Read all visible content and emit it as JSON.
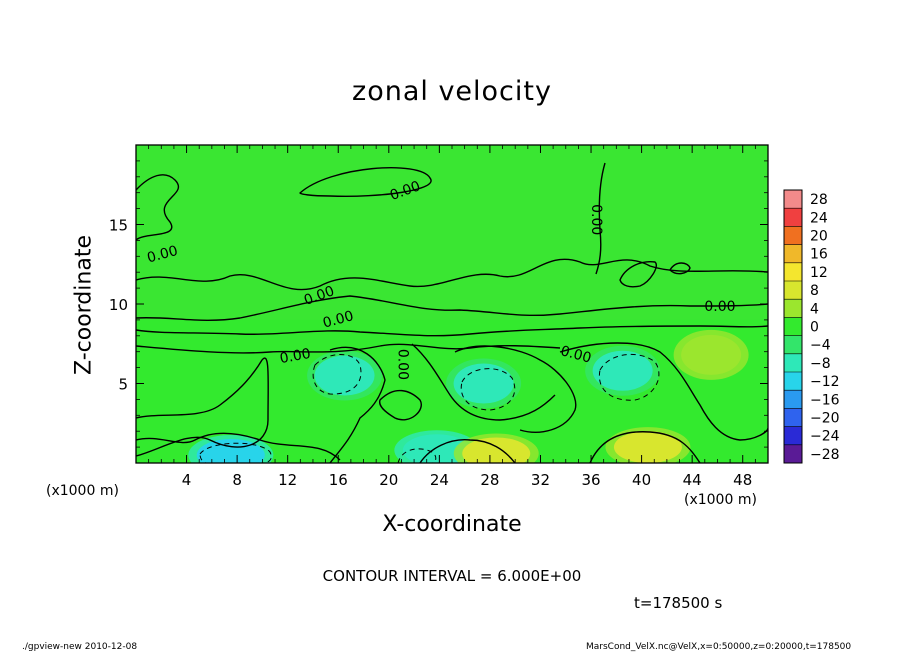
{
  "chart_data": {
    "type": "heatmap",
    "title": "zonal velocity",
    "xlabel": "X-coordinate",
    "ylabel": "Z-coordinate",
    "x_unit": "(x1000 m)",
    "xlim": [
      0,
      50
    ],
    "ylim": [
      0,
      20
    ],
    "x_ticks": [
      4,
      8,
      12,
      16,
      20,
      24,
      28,
      32,
      36,
      40,
      44,
      48
    ],
    "y_ticks": [
      5,
      10,
      15
    ],
    "colorbar": {
      "levels": [
        28,
        24,
        20,
        16,
        12,
        8,
        4,
        0,
        -4,
        -8,
        -12,
        -16,
        -20,
        -24,
        -28
      ],
      "labels": [
        "28",
        "24",
        "20",
        "16",
        "12",
        "8",
        "4",
        "0",
        "−4",
        "−8",
        "−12",
        "−16",
        "−20",
        "−24",
        "−28"
      ]
    },
    "contour_labels": [
      {
        "text": "0.00",
        "x": 21.3,
        "y": 17.1,
        "angle": -20
      },
      {
        "text": "0.00",
        "x": 36.4,
        "y": 15.3,
        "angle": 90
      },
      {
        "text": "0.00",
        "x": 2.1,
        "y": 13.1,
        "angle": -15
      },
      {
        "text": "0.00",
        "x": 14.5,
        "y": 10.5,
        "angle": -20
      },
      {
        "text": "0.00",
        "x": 16.0,
        "y": 9.0,
        "angle": -15
      },
      {
        "text": "0.00",
        "x": 12.6,
        "y": 6.7,
        "angle": -10
      },
      {
        "text": "0.00",
        "x": 21.1,
        "y": 6.2,
        "angle": 90
      },
      {
        "text": "0.00",
        "x": 34.8,
        "y": 6.8,
        "angle": 15
      },
      {
        "text": "0.00",
        "x": 46.2,
        "y": 9.8,
        "angle": 0
      }
    ],
    "field_extrema": [
      {
        "x": 7.5,
        "y": 0.5,
        "value": -12
      },
      {
        "x": 23.8,
        "y": 0.8,
        "value": -10
      },
      {
        "x": 28.5,
        "y": 0.6,
        "value": 8
      },
      {
        "x": 40.5,
        "y": 1.0,
        "value": 6
      },
      {
        "x": 16.5,
        "y": 5.5,
        "value": -9
      },
      {
        "x": 27.5,
        "y": 5.0,
        "value": -8
      },
      {
        "x": 38.5,
        "y": 5.8,
        "value": -9
      },
      {
        "x": 45.5,
        "y": 6.8,
        "value": 5
      }
    ]
  },
  "annotations": {
    "contour_interval": "CONTOUR INTERVAL = 6.000E+00",
    "time": "t=178500  s",
    "footer_left": "./gpview-new   2010-12-08",
    "footer_right": "MarsCond_VelX.nc@VelX,x=0:50000,z=0:20000,t=178500"
  },
  "colors": {
    "background_field": "#33ea2e",
    "upper_field": "#3ae632",
    "contour_line": "#000000"
  }
}
